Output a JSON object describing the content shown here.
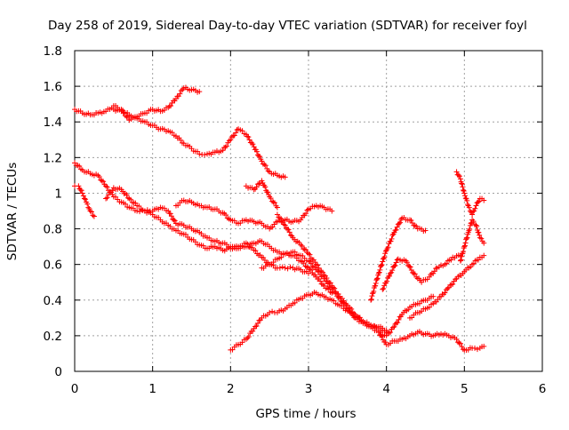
{
  "chart_data": {
    "type": "scatter",
    "title": "Day 258 of 2019, Sidereal Day-to-day VTEC variation (SDTVAR) for receiver foyl",
    "xlabel": "GPS time / hours",
    "ylabel": "SDTVAR / TECUs",
    "xlim": [
      0,
      6
    ],
    "ylim": [
      0,
      1.8
    ],
    "x_ticks": [
      0,
      1,
      2,
      3,
      4,
      5,
      6
    ],
    "x_tick_labels": [
      "0",
      "1",
      "2",
      "3",
      "4",
      "5",
      "6"
    ],
    "y_ticks": [
      0,
      0.2,
      0.4,
      0.6,
      0.8,
      1.0,
      1.2,
      1.4,
      1.6,
      1.8
    ],
    "y_tick_labels": [
      "0",
      "0.2",
      "0.4",
      "0.6",
      "0.8",
      "1",
      "1.2",
      "1.4",
      "1.6",
      "1.8"
    ],
    "grid": true,
    "marker": "+",
    "marker_color": "#ff0000",
    "series": [
      {
        "x": [
          0.0,
          0.1,
          0.2,
          0.3,
          0.4,
          0.5,
          0.6,
          0.7,
          0.8,
          0.9,
          1.0,
          1.1,
          1.2,
          1.3,
          1.4,
          1.5,
          1.6
        ],
        "y": [
          1.47,
          1.45,
          1.44,
          1.45,
          1.46,
          1.49,
          1.47,
          1.41,
          1.43,
          1.45,
          1.47,
          1.46,
          1.48,
          1.53,
          1.59,
          1.58,
          1.57
        ]
      },
      {
        "x": [
          0.5,
          0.6,
          0.7,
          0.8,
          0.9,
          1.0,
          1.1,
          1.2,
          1.3,
          1.4,
          1.5,
          1.6,
          1.7,
          1.8,
          1.9,
          2.0,
          2.1,
          2.2,
          2.3,
          2.4,
          2.5,
          2.6,
          2.7
        ],
        "y": [
          1.47,
          1.46,
          1.44,
          1.42,
          1.4,
          1.38,
          1.36,
          1.35,
          1.32,
          1.28,
          1.25,
          1.22,
          1.22,
          1.23,
          1.24,
          1.3,
          1.36,
          1.33,
          1.26,
          1.18,
          1.12,
          1.1,
          1.09
        ]
      },
      {
        "x": [
          0.0,
          0.1,
          0.2,
          0.3,
          0.4,
          0.5,
          0.6,
          0.7,
          0.8,
          0.9,
          1.0,
          1.1,
          1.2,
          1.3,
          1.4,
          1.5,
          1.6,
          1.7,
          1.8,
          1.9,
          2.0,
          2.1,
          2.2,
          2.3,
          2.4,
          2.5,
          2.6,
          2.7,
          2.8,
          2.9,
          3.0
        ],
        "y": [
          1.17,
          1.13,
          1.11,
          1.1,
          1.04,
          0.98,
          0.95,
          0.92,
          0.9,
          0.9,
          0.88,
          0.85,
          0.82,
          0.79,
          0.77,
          0.74,
          0.71,
          0.69,
          0.7,
          0.68,
          0.69,
          0.7,
          0.72,
          0.68,
          0.64,
          0.6,
          0.58,
          0.58,
          0.58,
          0.57,
          0.55
        ]
      },
      {
        "x": [
          0.0,
          0.05,
          0.1,
          0.15,
          0.2,
          0.25
        ],
        "y": [
          1.04,
          1.04,
          1.0,
          0.95,
          0.9,
          0.87
        ]
      },
      {
        "x": [
          0.4,
          0.5,
          0.6,
          0.7,
          0.8,
          0.9,
          1.0,
          1.1,
          1.2,
          1.3,
          1.4,
          1.5,
          1.6,
          1.7,
          1.8,
          1.9,
          2.0,
          2.1,
          2.2,
          2.3,
          2.4,
          2.5,
          2.6,
          2.7,
          2.8,
          2.9,
          3.0,
          3.1,
          3.2,
          3.3
        ],
        "y": [
          0.97,
          1.03,
          1.02,
          0.97,
          0.93,
          0.9,
          0.9,
          0.92,
          0.9,
          0.83,
          0.82,
          0.8,
          0.78,
          0.75,
          0.73,
          0.72,
          0.7,
          0.69,
          0.7,
          0.72,
          0.73,
          0.7,
          0.67,
          0.66,
          0.65,
          0.62,
          0.58,
          0.53,
          0.48,
          0.44
        ]
      },
      {
        "x": [
          1.3,
          1.4,
          1.5,
          1.6,
          1.7,
          1.8,
          1.9,
          2.0,
          2.1,
          2.2,
          2.3,
          2.4,
          2.5,
          2.6,
          2.7,
          2.8,
          2.9,
          3.0,
          3.1,
          3.2,
          3.3
        ],
        "y": [
          0.93,
          0.96,
          0.95,
          0.93,
          0.92,
          0.91,
          0.89,
          0.85,
          0.83,
          0.85,
          0.84,
          0.83,
          0.8,
          0.84,
          0.85,
          0.84,
          0.85,
          0.91,
          0.93,
          0.92,
          0.9
        ]
      },
      {
        "x": [
          2.2,
          2.3,
          2.4,
          2.5,
          2.6
        ],
        "y": [
          1.04,
          1.02,
          1.07,
          0.98,
          0.92
        ]
      },
      {
        "x": [
          2.4,
          2.5,
          2.6,
          2.7,
          2.8,
          2.9,
          3.0,
          3.1,
          3.2,
          3.3,
          3.4,
          3.5,
          3.6,
          3.7,
          3.8,
          3.9,
          4.0
        ],
        "y": [
          0.58,
          0.6,
          0.63,
          0.66,
          0.67,
          0.65,
          0.62,
          0.57,
          0.52,
          0.46,
          0.41,
          0.35,
          0.3,
          0.27,
          0.25,
          0.25,
          0.23
        ]
      },
      {
        "x": [
          2.6,
          2.7,
          2.8,
          2.9,
          3.0,
          3.1,
          3.2,
          3.3,
          3.4,
          3.5,
          3.6,
          3.7,
          3.8,
          3.9,
          4.0,
          4.1,
          4.2,
          4.3,
          4.4,
          4.5,
          4.6
        ],
        "y": [
          0.88,
          0.82,
          0.75,
          0.71,
          0.66,
          0.6,
          0.54,
          0.48,
          0.42,
          0.37,
          0.32,
          0.28,
          0.25,
          0.22,
          0.2,
          0.25,
          0.32,
          0.36,
          0.38,
          0.4,
          0.42
        ]
      },
      {
        "x": [
          2.0,
          2.1,
          2.2,
          2.3,
          2.4,
          2.5,
          2.6,
          2.7,
          2.8,
          2.9,
          3.0,
          3.1,
          3.2,
          3.3,
          3.4,
          3.5,
          3.6,
          3.7,
          3.8,
          3.9,
          4.0
        ],
        "y": [
          0.12,
          0.15,
          0.18,
          0.24,
          0.3,
          0.33,
          0.33,
          0.35,
          0.38,
          0.41,
          0.43,
          0.44,
          0.42,
          0.4,
          0.37,
          0.34,
          0.31,
          0.28,
          0.26,
          0.24,
          0.22
        ]
      },
      {
        "x": [
          3.8,
          3.9,
          4.0,
          4.1,
          4.2,
          4.3,
          4.4,
          4.5
        ],
        "y": [
          0.4,
          0.55,
          0.68,
          0.78,
          0.86,
          0.85,
          0.8,
          0.79
        ]
      },
      {
        "x": [
          3.95,
          4.05,
          4.15,
          4.25,
          4.35,
          4.45,
          4.55,
          4.65,
          4.75,
          4.85,
          4.95
        ],
        "y": [
          0.46,
          0.55,
          0.63,
          0.62,
          0.55,
          0.5,
          0.53,
          0.58,
          0.6,
          0.64,
          0.65
        ]
      },
      {
        "x": [
          3.9,
          4.0,
          4.1,
          4.2,
          4.3,
          4.4,
          4.5,
          4.6,
          4.7,
          4.8,
          4.9,
          5.0,
          5.1,
          5.2,
          5.25
        ],
        "y": [
          0.22,
          0.15,
          0.17,
          0.18,
          0.2,
          0.22,
          0.21,
          0.2,
          0.21,
          0.2,
          0.18,
          0.12,
          0.13,
          0.13,
          0.14
        ]
      },
      {
        "x": [
          4.3,
          4.4,
          4.5,
          4.6,
          4.7,
          4.8,
          4.9,
          5.0,
          5.1,
          5.2,
          5.25
        ],
        "y": [
          0.3,
          0.33,
          0.35,
          0.38,
          0.42,
          0.47,
          0.52,
          0.56,
          0.6,
          0.64,
          0.65
        ]
      },
      {
        "x": [
          4.9,
          4.95,
          5.0,
          5.05,
          5.1,
          5.15,
          5.2,
          5.25
        ],
        "y": [
          1.12,
          1.08,
          1.0,
          0.93,
          0.88,
          0.93,
          0.97,
          0.96
        ]
      },
      {
        "x": [
          4.95,
          5.0,
          5.05,
          5.1,
          5.15,
          5.2,
          5.25
        ],
        "y": [
          0.62,
          0.7,
          0.78,
          0.85,
          0.82,
          0.75,
          0.72
        ]
      }
    ]
  }
}
